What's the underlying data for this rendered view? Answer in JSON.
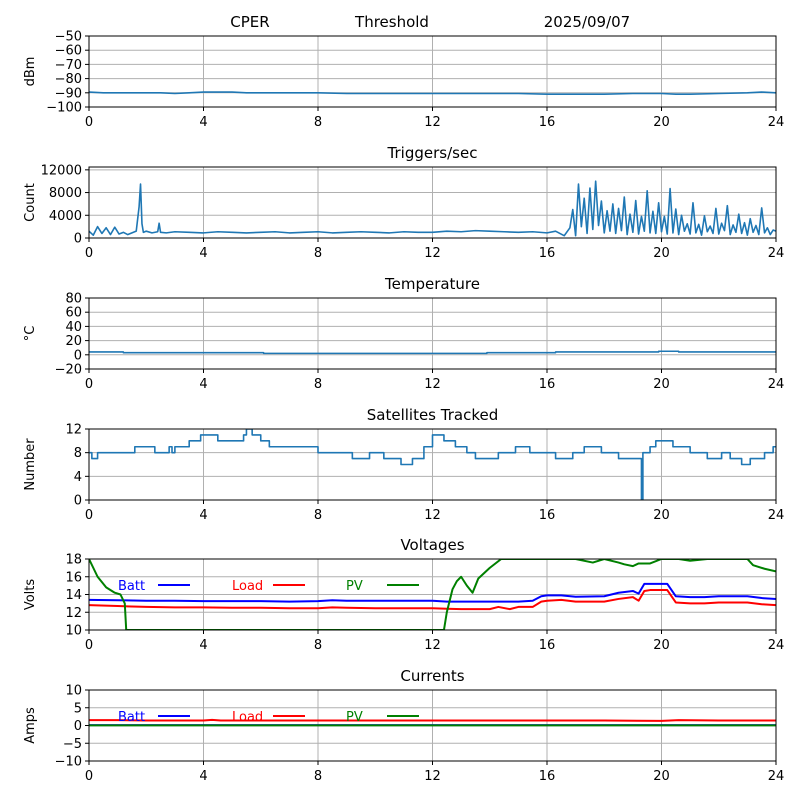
{
  "header": {
    "station": "CPER",
    "mode": "Threshold",
    "date": "2025/09/07"
  },
  "chart_data": [
    {
      "id": "signal",
      "type": "line",
      "title": "",
      "xlabel": "",
      "ylabel": "dBm",
      "xlim": [
        0,
        24
      ],
      "ylim": [
        -100,
        -50
      ],
      "xticks": [
        0,
        4,
        8,
        12,
        16,
        20,
        24
      ],
      "yticks": [
        -100,
        -90,
        -80,
        -70,
        -60,
        -50
      ],
      "grid": true,
      "series": [
        {
          "color": "#1f77b4",
          "x": [
            0,
            0.5,
            1,
            1.5,
            2,
            2.5,
            3,
            3.5,
            4,
            4.5,
            5,
            5.5,
            6,
            7,
            8,
            9,
            10,
            11,
            12,
            13,
            14,
            15,
            16,
            16.5,
            17,
            18,
            19,
            20,
            20.5,
            21,
            22,
            23,
            23.5,
            24
          ],
          "y": [
            -89.5,
            -90,
            -90,
            -90,
            -90,
            -90,
            -90.5,
            -90,
            -89.5,
            -89.5,
            -89.5,
            -90,
            -90,
            -90,
            -90,
            -90.5,
            -90.5,
            -90.5,
            -90.5,
            -90.5,
            -90.5,
            -90.5,
            -91,
            -91,
            -91,
            -91,
            -90.5,
            -90.5,
            -91,
            -91,
            -90.5,
            -90,
            -89.5,
            -90
          ]
        }
      ]
    },
    {
      "id": "triggers",
      "type": "line",
      "title": "Triggers/sec",
      "xlabel": "",
      "ylabel": "Count",
      "xlim": [
        0,
        24
      ],
      "ylim": [
        0,
        12500
      ],
      "xticks": [
        0,
        4,
        8,
        12,
        16,
        20,
        24
      ],
      "yticks": [
        0,
        4000,
        8000,
        12000
      ],
      "grid": true,
      "series": [
        {
          "color": "#1f77b4",
          "x": [
            0,
            0.15,
            0.3,
            0.45,
            0.6,
            0.75,
            0.9,
            1.05,
            1.2,
            1.35,
            1.5,
            1.65,
            1.75,
            1.8,
            1.85,
            1.9,
            2.0,
            2.2,
            2.4,
            2.45,
            2.5,
            2.7,
            3.0,
            3.5,
            4.0,
            4.5,
            5.0,
            5.5,
            6.0,
            6.5,
            7.0,
            7.5,
            8.0,
            8.5,
            9.0,
            9.5,
            10.0,
            10.5,
            11.0,
            11.5,
            12.0,
            12.5,
            13.0,
            13.5,
            14.0,
            14.5,
            15.0,
            15.5,
            16.0,
            16.3,
            16.6,
            16.8,
            16.9,
            17.0,
            17.1,
            17.2,
            17.3,
            17.4,
            17.5,
            17.6,
            17.7,
            17.8,
            17.9,
            18.0,
            18.1,
            18.2,
            18.3,
            18.4,
            18.5,
            18.6,
            18.7,
            18.8,
            18.9,
            19.0,
            19.1,
            19.2,
            19.3,
            19.4,
            19.5,
            19.6,
            19.7,
            19.8,
            19.9,
            20.0,
            20.1,
            20.2,
            20.3,
            20.4,
            20.5,
            20.6,
            20.7,
            20.8,
            20.9,
            21.0,
            21.1,
            21.2,
            21.3,
            21.4,
            21.5,
            21.6,
            21.7,
            21.8,
            21.9,
            22.0,
            22.1,
            22.2,
            22.3,
            22.4,
            22.5,
            22.6,
            22.7,
            22.8,
            22.9,
            23.0,
            23.1,
            23.2,
            23.3,
            23.4,
            23.5,
            23.6,
            23.7,
            23.8,
            23.9,
            24.0
          ],
          "y": [
            1200,
            500,
            2000,
            800,
            1800,
            600,
            1900,
            700,
            1000,
            600,
            900,
            1200,
            5500,
            9500,
            2500,
            1000,
            1200,
            900,
            1100,
            2600,
            1000,
            900,
            1100,
            1000,
            900,
            1100,
            1000,
            900,
            1000,
            1100,
            900,
            1000,
            1100,
            900,
            1000,
            1100,
            1000,
            900,
            1100,
            1000,
            1000,
            1200,
            1100,
            1300,
            1200,
            1100,
            1000,
            1100,
            900,
            1200,
            400,
            1800,
            5000,
            400,
            9500,
            2000,
            7000,
            800,
            8800,
            1500,
            10000,
            2200,
            6500,
            900,
            4800,
            1200,
            6000,
            800,
            5200,
            1300,
            7200,
            600,
            4200,
            1000,
            6600,
            700,
            3800,
            1200,
            8300,
            900,
            4700,
            800,
            6200,
            1100,
            3800,
            700,
            8700,
            900,
            5100,
            600,
            4000,
            1200,
            2500,
            700,
            6200,
            900,
            2400,
            500,
            3900,
            1100,
            2100,
            800,
            5200,
            700,
            2600,
            1300,
            5700,
            600,
            2300,
            1000,
            4200,
            800,
            2700,
            500,
            3400,
            1000,
            2200,
            600,
            5300,
            900,
            1800,
            600,
            1400,
            1200
          ]
        }
      ]
    },
    {
      "id": "temperature",
      "type": "line",
      "title": "Temperature",
      "xlabel": "",
      "ylabel": "°C",
      "xlim": [
        0,
        24
      ],
      "ylim": [
        -20,
        80
      ],
      "xticks": [
        0,
        4,
        8,
        12,
        16,
        20,
        24
      ],
      "yticks": [
        -20,
        0,
        20,
        40,
        60,
        80
      ],
      "grid": true,
      "series": [
        {
          "color": "#1f77b4",
          "x": [
            0,
            1.2,
            1.2,
            6.1,
            6.1,
            13.9,
            13.9,
            16.3,
            16.3,
            19.9,
            19.9,
            20.6,
            20.6,
            24
          ],
          "y": [
            4,
            4,
            3,
            3,
            2,
            2,
            3,
            3,
            4,
            4,
            5,
            5,
            4,
            4
          ]
        }
      ]
    },
    {
      "id": "satellites",
      "type": "line",
      "title": "Satellites Tracked",
      "xlabel": "",
      "ylabel": "Number",
      "xlim": [
        0,
        24
      ],
      "ylim": [
        0,
        12
      ],
      "xticks": [
        0,
        4,
        8,
        12,
        16,
        20,
        24
      ],
      "yticks": [
        0,
        4,
        8,
        12
      ],
      "grid": true,
      "series": [
        {
          "color": "#1f77b4",
          "x": [
            0,
            0.1,
            0.1,
            0.3,
            0.3,
            1.6,
            1.6,
            2.3,
            2.3,
            2.8,
            2.8,
            2.9,
            2.9,
            3.0,
            3.0,
            3.5,
            3.5,
            3.9,
            3.9,
            4.5,
            4.5,
            5.4,
            5.4,
            5.5,
            5.5,
            5.7,
            5.7,
            6.0,
            6.0,
            6.3,
            6.3,
            6.7,
            6.7,
            8.0,
            8.0,
            9.2,
            9.2,
            9.8,
            9.8,
            10.3,
            10.3,
            10.9,
            10.9,
            11.3,
            11.3,
            11.7,
            11.7,
            12.0,
            12.0,
            12.4,
            12.4,
            12.8,
            12.8,
            13.2,
            13.2,
            13.5,
            13.5,
            14.3,
            14.3,
            14.9,
            14.9,
            15.4,
            15.4,
            16.3,
            16.3,
            16.9,
            16.9,
            17.3,
            17.3,
            17.9,
            17.9,
            18.5,
            18.5,
            19.0,
            19.0,
            19.3,
            19.3,
            19.35,
            19.35,
            19.6,
            19.6,
            19.8,
            19.8,
            20.4,
            20.4,
            21.0,
            21.0,
            21.6,
            21.6,
            22.1,
            22.1,
            22.4,
            22.4,
            22.8,
            22.8,
            23.1,
            23.1,
            23.6,
            23.6,
            23.9,
            23.9,
            24
          ],
          "y": [
            8,
            8,
            7,
            7,
            8,
            8,
            9,
            9,
            8,
            8,
            9,
            9,
            8,
            8,
            9,
            9,
            10,
            10,
            11,
            11,
            10,
            10,
            11,
            11,
            12,
            12,
            11,
            11,
            10,
            10,
            9,
            9,
            9,
            9,
            8,
            8,
            7,
            7,
            8,
            8,
            7,
            7,
            6,
            6,
            7,
            7,
            9,
            9,
            11,
            11,
            10,
            10,
            9,
            9,
            8,
            8,
            7,
            7,
            8,
            8,
            9,
            9,
            8,
            8,
            7,
            7,
            8,
            8,
            9,
            9,
            8,
            8,
            7,
            7,
            7,
            7,
            0,
            0,
            8,
            8,
            9,
            9,
            10,
            10,
            9,
            9,
            8,
            8,
            7,
            7,
            8,
            8,
            7,
            7,
            6,
            6,
            7,
            7,
            8,
            8,
            9,
            9
          ]
        }
      ]
    },
    {
      "id": "voltages",
      "type": "line",
      "title": "Voltages",
      "xlabel": "",
      "ylabel": "Volts",
      "xlim": [
        0,
        24
      ],
      "ylim": [
        10,
        18
      ],
      "xticks": [
        0,
        4,
        8,
        12,
        16,
        20,
        24
      ],
      "yticks": [
        10,
        12,
        14,
        16,
        18
      ],
      "grid": true,
      "legend": "top-left-inline",
      "series": [
        {
          "name": "Batt",
          "color": "#0000ff",
          "x": [
            0,
            1,
            2,
            3,
            4,
            5,
            6,
            7,
            8,
            8.5,
            9,
            10,
            11,
            12,
            12.5,
            13,
            14,
            15,
            15.5,
            15.8,
            16,
            16.5,
            17,
            18,
            18.5,
            19,
            19.2,
            19.4,
            19.6,
            20,
            20.2,
            20.5,
            21,
            21.5,
            22,
            22.5,
            23,
            23.5,
            24
          ],
          "y": [
            13.4,
            13.35,
            13.3,
            13.3,
            13.25,
            13.25,
            13.25,
            13.2,
            13.25,
            13.35,
            13.3,
            13.3,
            13.3,
            13.3,
            13.2,
            13.2,
            13.2,
            13.2,
            13.3,
            13.8,
            13.9,
            13.9,
            13.75,
            13.8,
            14.2,
            14.4,
            14.1,
            15.2,
            15.2,
            15.2,
            15.2,
            13.8,
            13.7,
            13.7,
            13.8,
            13.8,
            13.8,
            13.6,
            13.5
          ]
        },
        {
          "name": "Load",
          "color": "#ff0000",
          "x": [
            0,
            1,
            2,
            3,
            4,
            5,
            6,
            7,
            8,
            8.5,
            9,
            10,
            11,
            12,
            12.5,
            13,
            14,
            14.3,
            14.7,
            15,
            15.5,
            15.8,
            16,
            16.5,
            17,
            18,
            18.5,
            19,
            19.2,
            19.4,
            19.6,
            20,
            20.2,
            20.5,
            21,
            21.5,
            22,
            22.5,
            23,
            23.5,
            24
          ],
          "y": [
            12.8,
            12.7,
            12.6,
            12.55,
            12.55,
            12.5,
            12.5,
            12.45,
            12.45,
            12.55,
            12.5,
            12.45,
            12.45,
            12.45,
            12.4,
            12.35,
            12.35,
            12.6,
            12.35,
            12.6,
            12.6,
            13.2,
            13.3,
            13.4,
            13.2,
            13.2,
            13.5,
            13.7,
            13.3,
            14.4,
            14.5,
            14.5,
            14.5,
            13.1,
            13.0,
            13.0,
            13.1,
            13.1,
            13.1,
            12.9,
            12.8
          ]
        },
        {
          "name": "PV",
          "color": "#008000",
          "x": [
            0,
            0.3,
            0.6,
            0.9,
            1.1,
            1.25,
            1.3,
            12.4,
            12.5,
            12.7,
            12.85,
            13.0,
            13.2,
            13.4,
            13.6,
            14.0,
            14.4,
            14.8,
            15.2,
            15.6,
            16.0,
            17.0,
            17.6,
            18.0,
            18.5,
            18.7,
            19.0,
            19.2,
            19.6,
            20.0,
            20.6,
            21.0,
            21.6,
            22.0,
            22.6,
            23.0,
            23.2,
            23.6,
            24
          ],
          "y": [
            18,
            16,
            14.8,
            14.2,
            14.0,
            13.0,
            10.0,
            10.0,
            12.0,
            14.6,
            15.5,
            16.0,
            15.0,
            14.2,
            15.8,
            17.0,
            18.0,
            18.0,
            18.0,
            18.0,
            18.0,
            18.0,
            17.6,
            18.0,
            17.6,
            17.4,
            17.2,
            17.5,
            17.5,
            18.0,
            18.0,
            17.8,
            18.0,
            18.0,
            18.0,
            18.0,
            17.3,
            16.9,
            16.6
          ]
        }
      ]
    },
    {
      "id": "currents",
      "type": "line",
      "title": "Currents",
      "xlabel": "",
      "ylabel": "Amps",
      "xlim": [
        0,
        24
      ],
      "ylim": [
        -10,
        10
      ],
      "xticks": [
        0,
        4,
        8,
        12,
        16,
        20,
        24
      ],
      "yticks": [
        -10,
        -5,
        0,
        5,
        10
      ],
      "grid": true,
      "legend": "top-left-inline",
      "series": [
        {
          "name": "Batt",
          "color": "#0000ff",
          "x": [
            0,
            24
          ],
          "y": [
            0.1,
            0.1
          ]
        },
        {
          "name": "Load",
          "color": "#ff0000",
          "x": [
            0,
            1,
            2,
            3,
            4,
            4.3,
            4.6,
            6,
            8,
            10,
            12,
            14,
            16,
            18,
            20,
            20.6,
            22,
            24
          ],
          "y": [
            1.5,
            1.5,
            1.4,
            1.4,
            1.4,
            1.6,
            1.4,
            1.4,
            1.4,
            1.4,
            1.4,
            1.4,
            1.4,
            1.4,
            1.3,
            1.5,
            1.4,
            1.4
          ]
        },
        {
          "name": "PV",
          "color": "#008000",
          "x": [
            0,
            24
          ],
          "y": [
            0.05,
            0.05
          ]
        }
      ]
    }
  ]
}
